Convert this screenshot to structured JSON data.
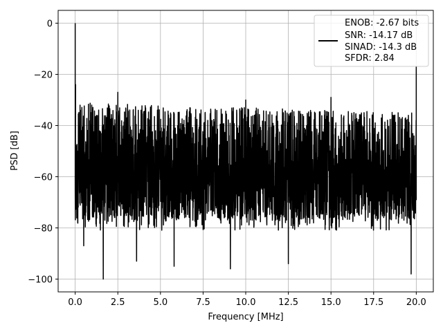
{
  "chart_data": {
    "type": "line",
    "xlabel": "Frequency [MHz]",
    "ylabel": "PSD [dB]",
    "xlim": [
      -1.0,
      21.0
    ],
    "ylim": [
      -105,
      5
    ],
    "x_ticks": [
      0.0,
      2.5,
      5.0,
      7.5,
      10.0,
      12.5,
      15.0,
      17.5,
      20.0
    ],
    "x_tick_labels": [
      "0.0",
      "2.5",
      "5.0",
      "7.5",
      "10.0",
      "12.5",
      "15.0",
      "17.5",
      "20.0"
    ],
    "y_ticks": [
      0,
      -20,
      -40,
      -60,
      -80,
      -100
    ],
    "y_tick_labels": [
      "0",
      "−20",
      "−40",
      "−60",
      "−80",
      "−100"
    ],
    "grid": true,
    "legend_position": "top-right",
    "legend_lines": [
      "ENOB: -2.67 bits",
      "SNR: -14.17 dB",
      "SINAD: -14.3 dB",
      "SFDR: 2.84"
    ],
    "series_color": "#000000",
    "spectrum": {
      "x_range": [
        0.0,
        20.0
      ],
      "dc_peak_db": 0,
      "nyquist_peak_db": -17,
      "upper_envelope_db_start": -31,
      "upper_envelope_db_end": -35,
      "lower_envelope_db": -77,
      "deep_nulls": [
        [
          0.5,
          -87
        ],
        [
          1.65,
          -100
        ],
        [
          3.6,
          -93
        ],
        [
          5.8,
          -95
        ],
        [
          9.1,
          -96
        ],
        [
          12.5,
          -94
        ],
        [
          19.7,
          -98
        ]
      ],
      "spurs": [
        [
          2.5,
          -27
        ],
        [
          10.0,
          -30
        ],
        [
          15.0,
          -29
        ]
      ]
    }
  }
}
